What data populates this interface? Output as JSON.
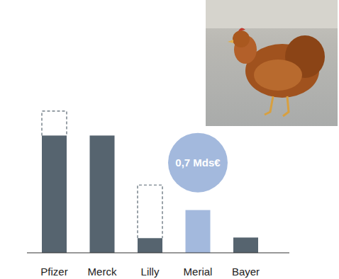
{
  "chart_data": {
    "type": "bar",
    "categories": [
      "Pfizer",
      "Merck",
      "Lilly",
      "Merial",
      "Bayer"
    ],
    "stacked": true,
    "tick_labels": "x",
    "ylim": [
      0,
      2.4
    ],
    "series": [
      {
        "values": [
          1.92,
          1.92,
          0.24,
          0.7,
          0.25
        ],
        "colors": [
          "#56646f",
          "#56646f",
          "#56646f",
          "#a3b9dd",
          "#56646f"
        ],
        "data_labels": true,
        "value_labels": [
          null,
          null,
          null,
          "0,7 Mds€",
          null
        ]
      },
      {
        "values": [
          0.4,
          null,
          0.87,
          null,
          null
        ],
        "color": "#56646f",
        "line_style": "dashed"
      }
    ]
  }
}
